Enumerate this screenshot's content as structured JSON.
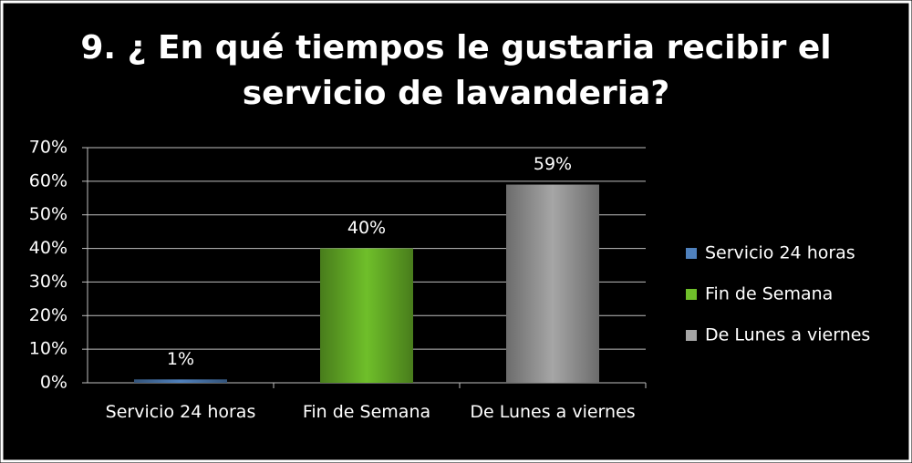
{
  "chart_data": {
    "type": "bar",
    "title": "9. ¿ En qué tiempos le gustaria recibir el servicio de lavanderia?",
    "categories": [
      "Servicio 24 horas",
      "Fin de Semana",
      "De Lunes a viernes"
    ],
    "values": [
      1,
      40,
      59
    ],
    "value_labels": [
      "1%",
      "40%",
      "59%"
    ],
    "colors": [
      "#4f81bd",
      "#6fbf2a",
      "#a6a6a6"
    ],
    "ylim": [
      0,
      70
    ],
    "yticks": [
      {
        "value": 0,
        "label": "0%"
      },
      {
        "value": 10,
        "label": "10%"
      },
      {
        "value": 20,
        "label": "20%"
      },
      {
        "value": 30,
        "label": "30%"
      },
      {
        "value": 40,
        "label": "40%"
      },
      {
        "value": 50,
        "label": "50%"
      },
      {
        "value": 60,
        "label": "60%"
      },
      {
        "value": 70,
        "label": "70%"
      }
    ],
    "grid": true,
    "legend": "right"
  }
}
